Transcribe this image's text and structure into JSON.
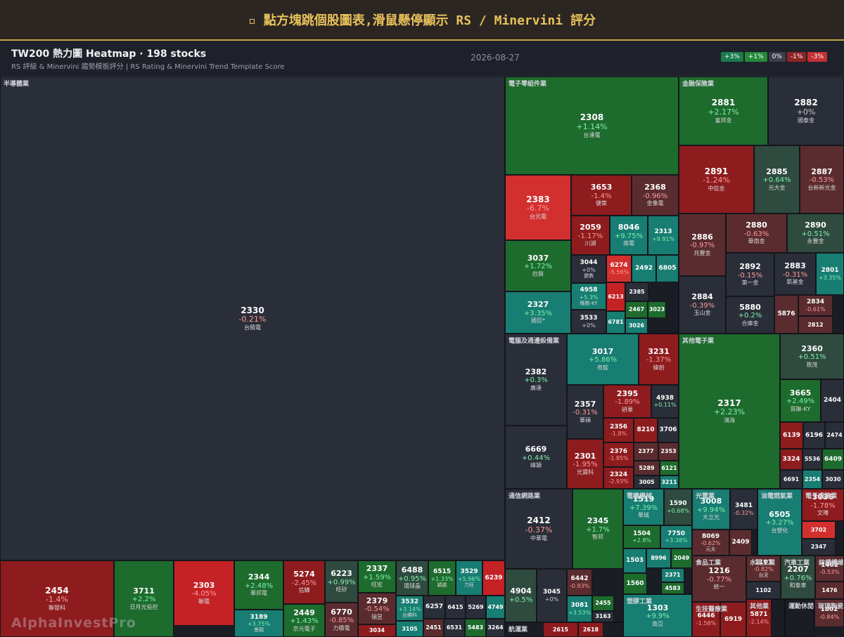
{
  "banner": {
    "text": "▫ 點方塊跳個股圖表,滑鼠懸停顯示 RS / Minervini 評分"
  },
  "header": {
    "title": "TW200 熱力圖 Heatmap · 198 stocks",
    "subtitle": "RS 評級 & Minervini 趨勢模板評分 | RS Rating & Minervini Trend Template Score",
    "date": "2026-08-27"
  },
  "legend": [
    {
      "label": "+3%",
      "color": "#1b7a4e"
    },
    {
      "label": "+1%",
      "color": "#25893a"
    },
    {
      "label": "0%",
      "color": "#3a3f48"
    },
    {
      "label": "-1%",
      "color": "#8e2428"
    },
    {
      "label": "-3%",
      "color": "#c43033"
    }
  ],
  "watermark": "AlphaInvestPro",
  "colors": {
    "strong_up": "#187d72",
    "up": "#1e6b2e",
    "mild_up": "#2f4a3e",
    "flat": "#2a2e38",
    "mild_down": "#5a2c2f",
    "down": "#8e1c1f",
    "strong_down": "#d2302f"
  },
  "chart_data": {
    "type": "heatmap",
    "sectors": [
      {
        "label": "半導體業"
      },
      {
        "label": "電子零組件業"
      },
      {
        "label": "金融保險業"
      },
      {
        "label": "電腦及週邊設備業"
      },
      {
        "label": "其他電子業"
      },
      {
        "label": "通信網路業"
      },
      {
        "label": "電機機械"
      },
      {
        "label": "光電業"
      },
      {
        "label": "油電燃氣業"
      },
      {
        "label": "電子通路業"
      },
      {
        "label": "食品工業"
      },
      {
        "label": "水泥工業"
      },
      {
        "label": "汽車工業"
      },
      {
        "label": "紡織纖維"
      },
      {
        "label": "塑膠工業"
      },
      {
        "label": "生技醫療業"
      },
      {
        "label": "其他業"
      },
      {
        "label": "運動休閒"
      },
      {
        "label": "玻璃陶瓷"
      },
      {
        "label": "航運業"
      }
    ],
    "stocks": [
      {
        "code": "2330",
        "change": "-0.21%",
        "name": "台積電",
        "color": "#2a2e38"
      },
      {
        "code": "2454",
        "change": "-1.4%",
        "name": "聯發科",
        "color": "#8e1c1f"
      },
      {
        "code": "3711",
        "change": "+2.2%",
        "name": "日月光投控",
        "color": "#1e6b2e"
      },
      {
        "code": "2303",
        "change": "-4.05%",
        "name": "聯電",
        "color": "#c52226"
      },
      {
        "code": "2344",
        "change": "+2.48%",
        "name": "華邦電",
        "color": "#1e6b2e"
      },
      {
        "code": "5274",
        "change": "-2.45%",
        "name": "信驊",
        "color": "#8e1c1f"
      },
      {
        "code": "6223",
        "change": "+0.99%",
        "name": "旺矽",
        "color": "#2f4a3e"
      },
      {
        "code": "2337",
        "change": "+1.59%",
        "name": "旺宏",
        "color": "#1e6b2e"
      },
      {
        "code": "6488",
        "change": "+0.95%",
        "name": "環球晶",
        "color": "#2f4a3e"
      },
      {
        "code": "6515",
        "change": "+1.33%",
        "name": "穎崴",
        "color": "#1e6b2e"
      },
      {
        "code": "3529",
        "change": "+5.96%",
        "name": "力旺",
        "color": "#187d72"
      },
      {
        "code": "6239",
        "change": "",
        "name": "",
        "color": "#c52226"
      },
      {
        "code": "3189",
        "change": "+3.75%",
        "name": "景碩",
        "color": "#187d72"
      },
      {
        "code": "2449",
        "change": "+1.43%",
        "name": "京元電子",
        "color": "#1e6b2e"
      },
      {
        "code": "6770",
        "change": "-0.85%",
        "name": "力積電",
        "color": "#5a2c2f"
      },
      {
        "code": "2379",
        "change": "-0.54%",
        "name": "瑞昱",
        "color": "#5a2c2f"
      },
      {
        "code": "3034",
        "change": "",
        "name": "",
        "color": "#8e1c1f"
      },
      {
        "code": "3532",
        "change": "+3.14%",
        "name": "台勝科",
        "color": "#187d72"
      },
      {
        "code": "6257",
        "change": "",
        "name": "",
        "color": "#2a2e38"
      },
      {
        "code": "6415",
        "change": "",
        "name": "",
        "color": "#2a2e38"
      },
      {
        "code": "5269",
        "change": "",
        "name": "",
        "color": "#2a2e38"
      },
      {
        "code": "4749",
        "change": "",
        "name": "",
        "color": "#187d72"
      },
      {
        "code": "3105",
        "change": "",
        "name": "",
        "color": "#187d72"
      },
      {
        "code": "2451",
        "change": "",
        "name": "",
        "color": "#5a2c2f"
      },
      {
        "code": "6531",
        "change": "",
        "name": "",
        "color": "#2a2e38"
      },
      {
        "code": "5483",
        "change": "",
        "name": "",
        "color": "#1e6b2e"
      },
      {
        "code": "3264",
        "change": "",
        "name": "",
        "color": "#2a2e38"
      },
      {
        "code": "2308",
        "change": "+1.14%",
        "name": "台達電",
        "color": "#1e6b2e"
      },
      {
        "code": "2383",
        "change": "-6.7%",
        "name": "台光電",
        "color": "#d2302f"
      },
      {
        "code": "3653",
        "change": "-1.4%",
        "name": "健策",
        "color": "#8e1c1f"
      },
      {
        "code": "2368",
        "change": "-0.96%",
        "name": "金像電",
        "color": "#5a2c2f"
      },
      {
        "code": "2059",
        "change": "-1.17%",
        "name": "川湖",
        "color": "#8e1c1f"
      },
      {
        "code": "8046",
        "change": "+9.75%",
        "name": "南電",
        "color": "#187d72"
      },
      {
        "code": "2313",
        "change": "+9.91%",
        "name": "",
        "color": "#187d72"
      },
      {
        "code": "3037",
        "change": "+1.72%",
        "name": "欣興",
        "color": "#1e6b2e"
      },
      {
        "code": "3044",
        "change": "+0%",
        "name": "健鼎",
        "color": "#2a2e38"
      },
      {
        "code": "6274",
        "change": "-5.56%",
        "name": "",
        "color": "#d2302f"
      },
      {
        "code": "2492",
        "change": "",
        "name": "",
        "color": "#187d72"
      },
      {
        "code": "6805",
        "change": "",
        "name": "",
        "color": "#187d72"
      },
      {
        "code": "4958",
        "change": "+5.3%",
        "name": "臻鼎-KY",
        "color": "#187d72"
      },
      {
        "code": "6213",
        "change": "",
        "name": "",
        "color": "#c52226"
      },
      {
        "code": "2385",
        "change": "",
        "name": "",
        "color": "#2a2e38"
      },
      {
        "code": "2327",
        "change": "+3.35%",
        "name": "國巨*",
        "color": "#187d72"
      },
      {
        "code": "3533",
        "change": "+0%",
        "name": "嘉澤",
        "color": "#2a2e38"
      },
      {
        "code": "2467",
        "change": "",
        "name": "",
        "color": "#1e6b2e"
      },
      {
        "code": "3023",
        "change": "",
        "name": "",
        "color": "#1e6b2e"
      },
      {
        "code": "6781",
        "change": "",
        "name": "",
        "color": "#187d72"
      },
      {
        "code": "3026",
        "change": "",
        "name": "",
        "color": "#187d72"
      },
      {
        "code": "2881",
        "change": "+2.17%",
        "name": "富邦金",
        "color": "#1e6b2e"
      },
      {
        "code": "2882",
        "change": "+0%",
        "name": "國泰金",
        "color": "#2a2e38"
      },
      {
        "code": "2891",
        "change": "-1.24%",
        "name": "中信金",
        "color": "#8e1c1f"
      },
      {
        "code": "2885",
        "change": "+0.64%",
        "name": "元大金",
        "color": "#2f4a3e"
      },
      {
        "code": "2887",
        "change": "-0.53%",
        "name": "台新新光金",
        "color": "#5a2c2f"
      },
      {
        "code": "2886",
        "change": "-0.97%",
        "name": "兆豐金",
        "color": "#5a2c2f"
      },
      {
        "code": "2880",
        "change": "-0.63%",
        "name": "華南金",
        "color": "#5a2c2f"
      },
      {
        "code": "2890",
        "change": "+0.51%",
        "name": "永豐金",
        "color": "#2f4a3e"
      },
      {
        "code": "2892",
        "change": "-0.15%",
        "name": "第一金",
        "color": "#2a2e38"
      },
      {
        "code": "2883",
        "change": "-0.31%",
        "name": "凱基金",
        "color": "#2a2e38"
      },
      {
        "code": "2801",
        "change": "+3.35%",
        "name": "",
        "color": "#187d72"
      },
      {
        "code": "2884",
        "change": "-0.39%",
        "name": "玉山金",
        "color": "#2a2e38"
      },
      {
        "code": "5880",
        "change": "+0.2%",
        "name": "合庫金",
        "color": "#2a2e38"
      },
      {
        "code": "5876",
        "change": "",
        "name": "",
        "color": "#5a2c2f"
      },
      {
        "code": "2834",
        "change": "-0.61%",
        "name": "",
        "color": "#5a2c2f"
      },
      {
        "code": "2812",
        "change": "-0.79%",
        "name": "",
        "color": "#5a2c2f"
      },
      {
        "code": "2382",
        "change": "+0.3%",
        "name": "廣達",
        "color": "#2a2e38"
      },
      {
        "code": "3017",
        "change": "+5.86%",
        "name": "奇鋐",
        "color": "#187d72"
      },
      {
        "code": "3231",
        "change": "-1.37%",
        "name": "緯創",
        "color": "#8e1c1f"
      },
      {
        "code": "2357",
        "change": "-0.31%",
        "name": "華碩",
        "color": "#2a2e38"
      },
      {
        "code": "2395",
        "change": "-1.89%",
        "name": "研華",
        "color": "#8e1c1f"
      },
      {
        "code": "4938",
        "change": "+0.11%",
        "name": "",
        "color": "#2a2e38"
      },
      {
        "code": "2356",
        "change": "-1.8%",
        "name": "",
        "color": "#8e1c1f"
      },
      {
        "code": "8210",
        "change": "",
        "name": "",
        "color": "#8e1c1f"
      },
      {
        "code": "3706",
        "change": "",
        "name": "",
        "color": "#2a2e38"
      },
      {
        "code": "6669",
        "change": "+0.44%",
        "name": "緯穎",
        "color": "#2a2e38"
      },
      {
        "code": "2301",
        "change": "-1.95%",
        "name": "光寶科",
        "color": "#8e1c1f"
      },
      {
        "code": "2376",
        "change": "-1.85%",
        "name": "",
        "color": "#8e1c1f"
      },
      {
        "code": "2377",
        "change": "",
        "name": "",
        "color": "#5a2c2f"
      },
      {
        "code": "2353",
        "change": "",
        "name": "",
        "color": "#5a2c2f"
      },
      {
        "code": "5289",
        "change": "",
        "name": "",
        "color": "#5a2c2f"
      },
      {
        "code": "6121",
        "change": "",
        "name": "",
        "color": "#1e6b2e"
      },
      {
        "code": "2324",
        "change": "-2.93%",
        "name": "",
        "color": "#8e1c1f"
      },
      {
        "code": "3005",
        "change": "",
        "name": "",
        "color": "#2a2e38"
      },
      {
        "code": "3211",
        "change": "",
        "name": "",
        "color": "#187d72"
      },
      {
        "code": "2317",
        "change": "+2.23%",
        "name": "鴻海",
        "color": "#1e6b2e"
      },
      {
        "code": "2360",
        "change": "+0.51%",
        "name": "致茂",
        "color": "#2f4a3e"
      },
      {
        "code": "3665",
        "change": "+2.49%",
        "name": "貿聯-KY",
        "color": "#1e6b2e"
      },
      {
        "code": "2404",
        "change": "",
        "name": "",
        "color": "#2a2e38"
      },
      {
        "code": "6139",
        "change": "",
        "name": "",
        "color": "#8e1c1f"
      },
      {
        "code": "6196",
        "change": "",
        "name": "",
        "color": "#2a2e38"
      },
      {
        "code": "2474",
        "change": "",
        "name": "",
        "color": "#2a2e38"
      },
      {
        "code": "3324",
        "change": "",
        "name": "",
        "color": "#8e1c1f"
      },
      {
        "code": "5536",
        "change": "",
        "name": "",
        "color": "#2a2e38"
      },
      {
        "code": "6409",
        "change": "",
        "name": "",
        "color": "#1e6b2e"
      },
      {
        "code": "6691",
        "change": "",
        "name": "",
        "color": "#2a2e38"
      },
      {
        "code": "2354",
        "change": "",
        "name": "",
        "color": "#187d72"
      },
      {
        "code": "3030",
        "change": "",
        "name": "",
        "color": "#2a2e38"
      },
      {
        "code": "2412",
        "change": "-0.37%",
        "name": "中華電",
        "color": "#2a2e38"
      },
      {
        "code": "2345",
        "change": "+1.7%",
        "name": "智邦",
        "color": "#1e6b2e"
      },
      {
        "code": "4904",
        "change": "+0.5%",
        "name": "",
        "color": "#2f4a3e"
      },
      {
        "code": "3045",
        "change": "+0%",
        "name": "",
        "color": "#2a2e38"
      },
      {
        "code": "6442",
        "change": "-0.93%",
        "name": "",
        "color": "#5a2c2f"
      },
      {
        "code": "3081",
        "change": "+3.53%",
        "name": "",
        "color": "#187d72"
      },
      {
        "code": "2455",
        "change": "",
        "name": "",
        "color": "#1e6b2e"
      },
      {
        "code": "3163",
        "change": "",
        "name": "",
        "color": "#2a2e38"
      },
      {
        "code": "1519",
        "change": "+7.39%",
        "name": "華城",
        "color": "#187d72"
      },
      {
        "code": "1590",
        "change": "+0.68%",
        "name": "",
        "color": "#2f4a3e"
      },
      {
        "code": "1504",
        "change": "+2.8%",
        "name": "東元",
        "color": "#1e6b2e"
      },
      {
        "code": "7750",
        "change": "+3.38%",
        "name": "新代",
        "color": "#187d72"
      },
      {
        "code": "1503",
        "change": "",
        "name": "",
        "color": "#187d72"
      },
      {
        "code": "8996",
        "change": "",
        "name": "",
        "color": "#187d72"
      },
      {
        "code": "2049",
        "change": "",
        "name": "",
        "color": "#1e6b2e"
      },
      {
        "code": "2371",
        "change": "",
        "name": "",
        "color": "#187d72"
      },
      {
        "code": "1560",
        "change": "",
        "name": "",
        "color": "#1e6b2e"
      },
      {
        "code": "4583",
        "change": "",
        "name": "",
        "color": "#1e6b2e"
      },
      {
        "code": "3008",
        "change": "+9.94%",
        "name": "大立光",
        "color": "#187d72"
      },
      {
        "code": "3481",
        "change": "-0.32%",
        "name": "",
        "color": "#2a2e38"
      },
      {
        "code": "8069",
        "change": "-0.62%",
        "name": "元太",
        "color": "#5a2c2f"
      },
      {
        "code": "2409",
        "change": "",
        "name": "",
        "color": "#5a2c2f"
      },
      {
        "code": "6505",
        "change": "+3.27%",
        "name": "台塑化",
        "color": "#187d72"
      },
      {
        "code": "3036",
        "change": "-1.78%",
        "name": "文曄",
        "color": "#8e1c1f"
      },
      {
        "code": "3702",
        "change": "-6.02%",
        "name": "",
        "color": "#d2302f"
      },
      {
        "code": "2347",
        "change": "-0.34%",
        "name": "",
        "color": "#2a2e38"
      },
      {
        "code": "1216",
        "change": "-0.77%",
        "name": "統一",
        "color": "#5a2c2f"
      },
      {
        "code": "1101",
        "change": "-0.82%",
        "name": "台泥",
        "color": "#5a2c2f"
      },
      {
        "code": "1102",
        "change": "",
        "name": "",
        "color": "#2a2e38"
      },
      {
        "code": "2207",
        "change": "+0.76%",
        "name": "和泰車",
        "color": "#2f4a3e"
      },
      {
        "code": "1402",
        "change": "-0.53%",
        "name": "",
        "color": "#5a2c2f"
      },
      {
        "code": "1476",
        "change": "-0.63%",
        "name": "",
        "color": "#5a2c2f"
      },
      {
        "code": "1303",
        "change": "+9.9%",
        "name": "南亞",
        "color": "#187d72"
      },
      {
        "code": "6446",
        "change": "-1.58%",
        "name": "",
        "color": "#8e1c1f"
      },
      {
        "code": "6919",
        "change": "",
        "name": "",
        "color": "#8e1c1f"
      },
      {
        "code": "5871",
        "change": "-2.14%",
        "name": "",
        "color": "#8e1c1f"
      },
      {
        "code": "1802",
        "change": "-0.84%",
        "name": "",
        "color": "#5a2c2f"
      },
      {
        "code": "2615",
        "change": "",
        "name": "",
        "color": "#8e1c1f"
      },
      {
        "code": "2618",
        "change": "",
        "name": "",
        "color": "#8e1c1f"
      }
    ]
  }
}
